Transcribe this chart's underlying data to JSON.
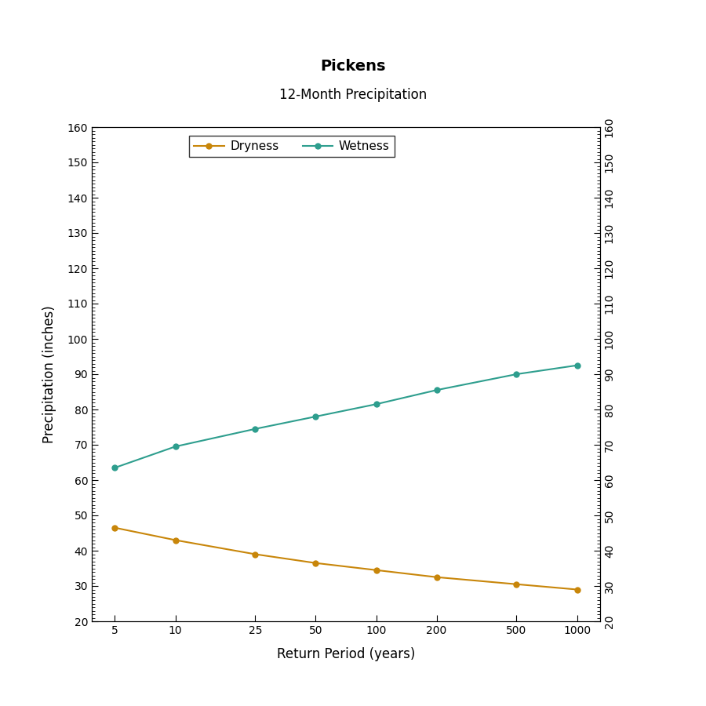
{
  "title": "Pickens",
  "subtitle": "12-Month Precipitation",
  "xlabel": "Return Period (years)",
  "ylabel": "Precipitation (inches)",
  "return_periods": [
    5,
    10,
    25,
    50,
    100,
    200,
    500,
    1000
  ],
  "dryness_values": [
    46.5,
    43.0,
    39.0,
    36.5,
    34.5,
    32.5,
    30.5,
    29.0
  ],
  "wetness_values": [
    63.5,
    69.5,
    74.5,
    78.0,
    81.5,
    85.5,
    90.0,
    92.5
  ],
  "dryness_color": "#C8860A",
  "wetness_color": "#2E9E8E",
  "ylim": [
    20,
    160
  ],
  "yticks": [
    20,
    30,
    40,
    50,
    60,
    70,
    80,
    90,
    100,
    110,
    120,
    130,
    140,
    150,
    160
  ],
  "background_color": "#ffffff",
  "plot_bg_color": "#ffffff",
  "legend_labels": [
    "Dryness",
    "Wetness"
  ],
  "title_fontsize": 14,
  "subtitle_fontsize": 12,
  "axis_label_fontsize": 12,
  "tick_fontsize": 10,
  "legend_fontsize": 11,
  "line_width": 1.5,
  "marker_size": 6
}
